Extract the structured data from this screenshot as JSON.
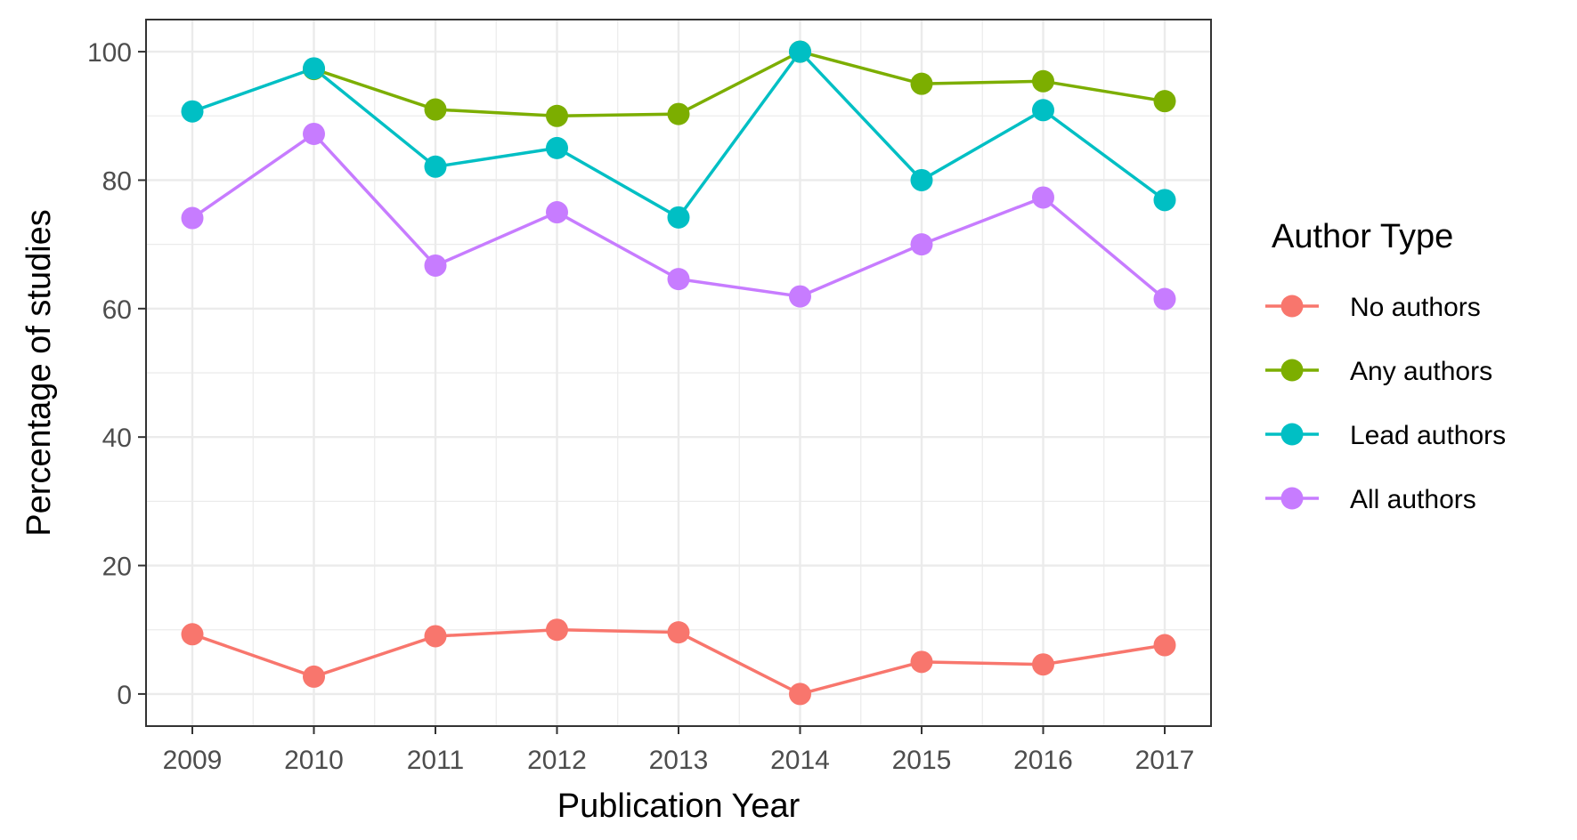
{
  "chart_data": {
    "type": "line",
    "xlabel": "Publication Year",
    "ylabel": "Percentage of studies",
    "x": [
      "2009",
      "2010",
      "2011",
      "2012",
      "2013",
      "2014",
      "2015",
      "2016",
      "2017"
    ],
    "ylim": [
      -5,
      105
    ],
    "yticks": [
      "0",
      "20",
      "40",
      "60",
      "80",
      "100"
    ],
    "grid": true,
    "legend": {
      "title": "Author Type",
      "placement": "right"
    },
    "series": [
      {
        "name": "No authors",
        "color": "#F8766D",
        "values": [
          9.3,
          2.7,
          9.0,
          10.0,
          9.6,
          0.0,
          5.0,
          4.6,
          7.6
        ]
      },
      {
        "name": "Any authors",
        "color": "#7CAE00",
        "values": [
          null,
          97.3,
          91.0,
          90.0,
          90.3,
          100.0,
          95.0,
          95.4,
          92.3
        ]
      },
      {
        "name": "Lead authors",
        "color": "#00BFC4",
        "values": [
          90.7,
          97.4,
          82.1,
          85.0,
          74.2,
          100.0,
          80.0,
          90.9,
          76.9
        ]
      },
      {
        "name": "All authors",
        "color": "#C77CFF",
        "values": [
          74.1,
          87.2,
          66.7,
          75.0,
          64.6,
          61.9,
          70.0,
          77.3,
          61.5
        ]
      }
    ]
  }
}
